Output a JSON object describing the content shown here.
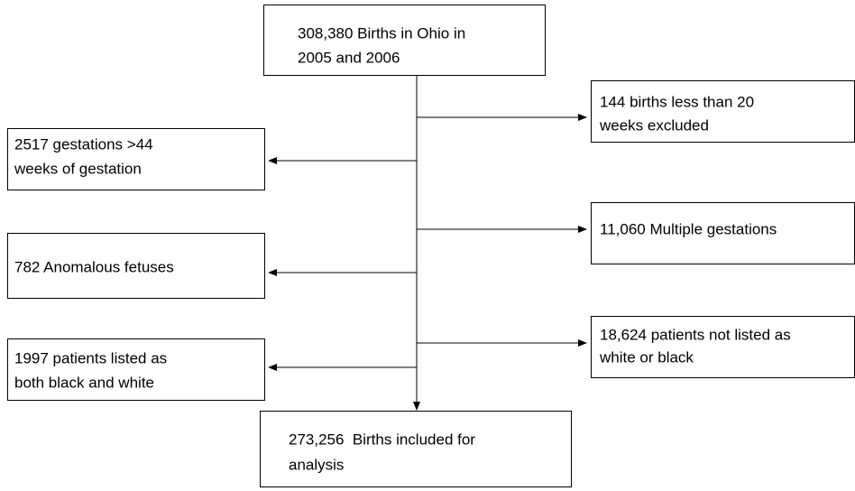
{
  "nodes": [
    {
      "lines": [
        "308,380 Births in Ohio in",
        "2005 and 2006"
      ]
    },
    {
      "lines": [
        "144 births less than 20",
        "weeks excluded"
      ]
    },
    {
      "lines": [
        "2517 gestations >44",
        "weeks of gestation"
      ]
    },
    {
      "lines": [
        "11,060 Multiple gestations"
      ]
    },
    {
      "lines": [
        "782 Anomalous fetuses"
      ]
    },
    {
      "lines": [
        "18,624 patients not listed as",
        "white or black"
      ]
    },
    {
      "lines": [
        "1997 patients listed as",
        "both black and white"
      ]
    },
    {
      "lines": [
        "273,256  Births included for",
        "analysis"
      ]
    }
  ]
}
